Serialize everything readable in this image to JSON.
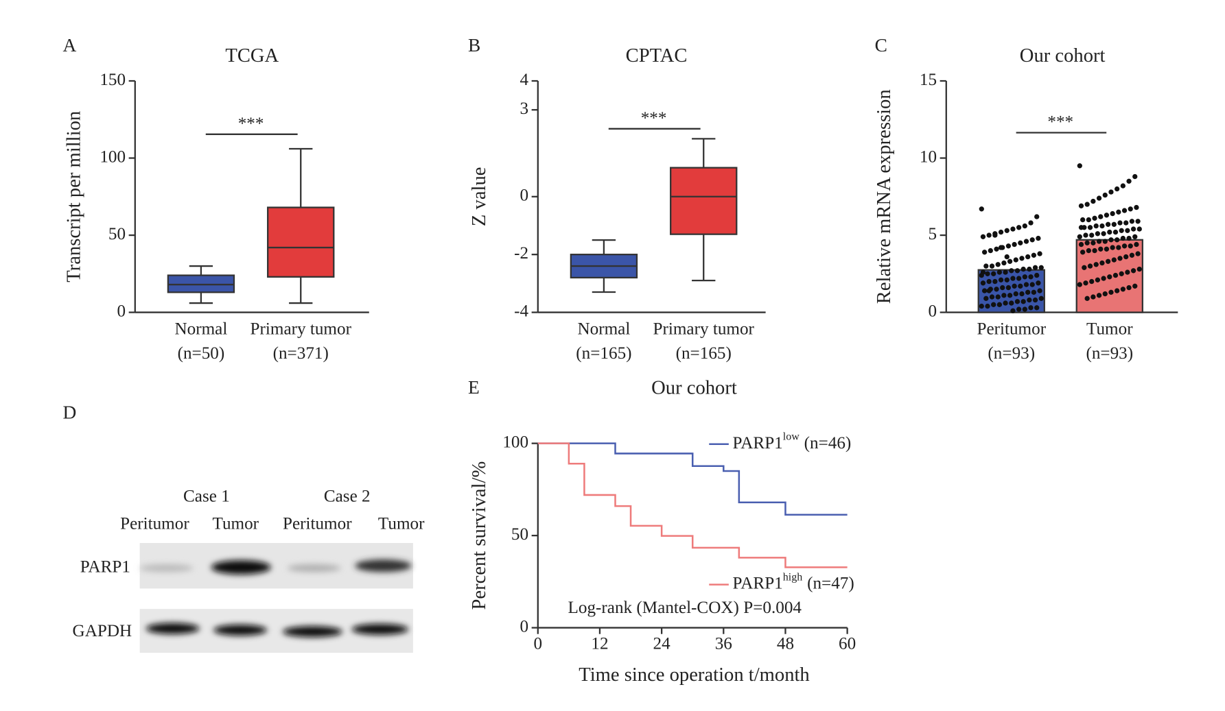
{
  "chart_data": [
    {
      "type": "box",
      "panel": "A",
      "title": "TCGA",
      "ylabel": "Transcript per million",
      "categories": [
        "Normal",
        "Primary tumor"
      ],
      "sublabels": [
        "(n=50)",
        "(n=371)"
      ],
      "boxes": [
        {
          "min": 6,
          "q1": 13,
          "median": 18,
          "q3": 24,
          "max": 30
        },
        {
          "min": 6,
          "q1": 23,
          "median": 42,
          "q3": 68,
          "max": 106
        }
      ],
      "colors": [
        "#3b55a8",
        "#e23c3c"
      ],
      "ylim": [
        0,
        150
      ],
      "yticks": [
        0,
        50,
        100,
        150
      ],
      "annotation": "***"
    },
    {
      "type": "box",
      "panel": "B",
      "title": "CPTAC",
      "ylabel": "Z value",
      "categories": [
        "Normal",
        "Primary tumor"
      ],
      "sublabels": [
        "(n=165)",
        "(n=165)"
      ],
      "boxes": [
        {
          "min": -3.3,
          "q1": -2.8,
          "median": -2.4,
          "q3": -2.0,
          "max": -1.5
        },
        {
          "min": -2.9,
          "q1": -1.3,
          "median": 0,
          "q3": 1.0,
          "max": 2.0
        }
      ],
      "colors": [
        "#3b55a8",
        "#e23c3c"
      ],
      "ylim": [
        -4,
        4
      ],
      "yticks": [
        -4,
        -2,
        0,
        3,
        4
      ],
      "annotation": "***"
    },
    {
      "type": "bar_scatter",
      "panel": "C",
      "title": "Our cohort",
      "ylabel": "Relative mRNA expression",
      "categories": [
        "Peritumor",
        "Tumor"
      ],
      "sublabels": [
        "(n=93)",
        "(n=93)"
      ],
      "values": [
        2.75,
        4.7
      ],
      "colors": [
        "#3a55a8",
        "#e87474"
      ],
      "points": [
        [
          6.7,
          6.2,
          5.8,
          5.6,
          5.5,
          5.4,
          5.3,
          5.2,
          5.1,
          5.0,
          4.9,
          4.8,
          4.7,
          4.6,
          4.5,
          4.4,
          4.3,
          4.2,
          4.1,
          4.0,
          3.9,
          3.8,
          3.7,
          3.6,
          3.5,
          3.4,
          3.3,
          3.2,
          3.1,
          3.0,
          3.0,
          2.9,
          2.9,
          2.8,
          2.8,
          2.7,
          2.7,
          2.6,
          2.6,
          2.5,
          2.5,
          2.4,
          2.4,
          2.3,
          2.3,
          2.2,
          2.2,
          2.1,
          2.1,
          2.0,
          2.0,
          1.9,
          1.9,
          1.8,
          1.8,
          1.7,
          1.7,
          1.6,
          1.6,
          1.5,
          1.5,
          1.4,
          1.4,
          1.3,
          1.3,
          1.2,
          1.2,
          1.1,
          1.1,
          1.0,
          1.0,
          0.9,
          0.9,
          0.8,
          0.8,
          0.7,
          0.7,
          0.6,
          0.6,
          0.5,
          0.5,
          0.4,
          0.4,
          0.3,
          0.3,
          0.2,
          0.2,
          0.1,
          3.6,
          4.2,
          5.0,
          1.4,
          2.6
        ],
        [
          9.5,
          8.8,
          8.5,
          8.2,
          8.0,
          7.8,
          7.6,
          7.4,
          7.2,
          7.0,
          6.9,
          6.8,
          6.7,
          6.6,
          6.5,
          6.4,
          6.3,
          6.2,
          6.1,
          6.0,
          6.0,
          5.9,
          5.9,
          5.8,
          5.8,
          5.7,
          5.7,
          5.6,
          5.6,
          5.5,
          5.5,
          5.4,
          5.4,
          5.3,
          5.3,
          5.2,
          5.2,
          5.1,
          5.1,
          5.0,
          5.0,
          4.9,
          4.9,
          4.8,
          4.8,
          4.7,
          4.7,
          4.6,
          4.6,
          4.5,
          4.5,
          4.4,
          4.4,
          4.3,
          4.3,
          4.2,
          4.2,
          4.1,
          4.1,
          4.0,
          4.0,
          3.9,
          3.8,
          3.7,
          3.6,
          3.5,
          3.4,
          3.3,
          3.2,
          3.1,
          3.0,
          2.9,
          2.8,
          2.7,
          2.6,
          2.5,
          2.4,
          2.3,
          2.2,
          2.1,
          2.0,
          1.9,
          1.8,
          1.7,
          1.6,
          1.5,
          1.4,
          1.3,
          1.2,
          1.1,
          1.0,
          0.9,
          5.5
        ]
      ],
      "ylim": [
        0,
        15
      ],
      "yticks": [
        0,
        5,
        10,
        15
      ],
      "annotation": "***"
    },
    {
      "type": "survival",
      "panel": "E",
      "title": "Our cohort",
      "ylabel": "Percent survival/%",
      "xlabel": "Time since operation t/month",
      "series": [
        {
          "name": "PARP1",
          "superscript": "low",
          "n_label": "(n=46)",
          "color": "#4a5fb0",
          "x": [
            0,
            15,
            30,
            36,
            39,
            48,
            60
          ],
          "values": [
            100,
            94.5,
            87.7,
            85,
            68,
            61.3,
            61.3
          ]
        },
        {
          "name": "PARP1",
          "superscript": "high",
          "n_label": "(n=47)",
          "color": "#ee7b7b",
          "x": [
            0,
            6,
            9,
            15,
            18,
            24,
            30,
            39,
            48,
            60
          ],
          "values": [
            100,
            89,
            72,
            66,
            55.3,
            49.8,
            43.4,
            38,
            32.8,
            32.8
          ]
        }
      ],
      "xlim": [
        0,
        60
      ],
      "xticks": [
        0,
        12,
        24,
        36,
        48,
        60
      ],
      "ylim": [
        0,
        100
      ],
      "yticks": [
        0,
        50,
        100
      ],
      "annotation": "Log-rank (Mantel-COX) P=0.004"
    }
  ],
  "blot": {
    "panel": "D",
    "cases": [
      "Case 1",
      "Case 2"
    ],
    "lanes": [
      "Peritumor",
      "Tumor",
      "Peritumor",
      "Tumor"
    ],
    "rows": [
      "PARP1",
      "GAPDH"
    ]
  }
}
